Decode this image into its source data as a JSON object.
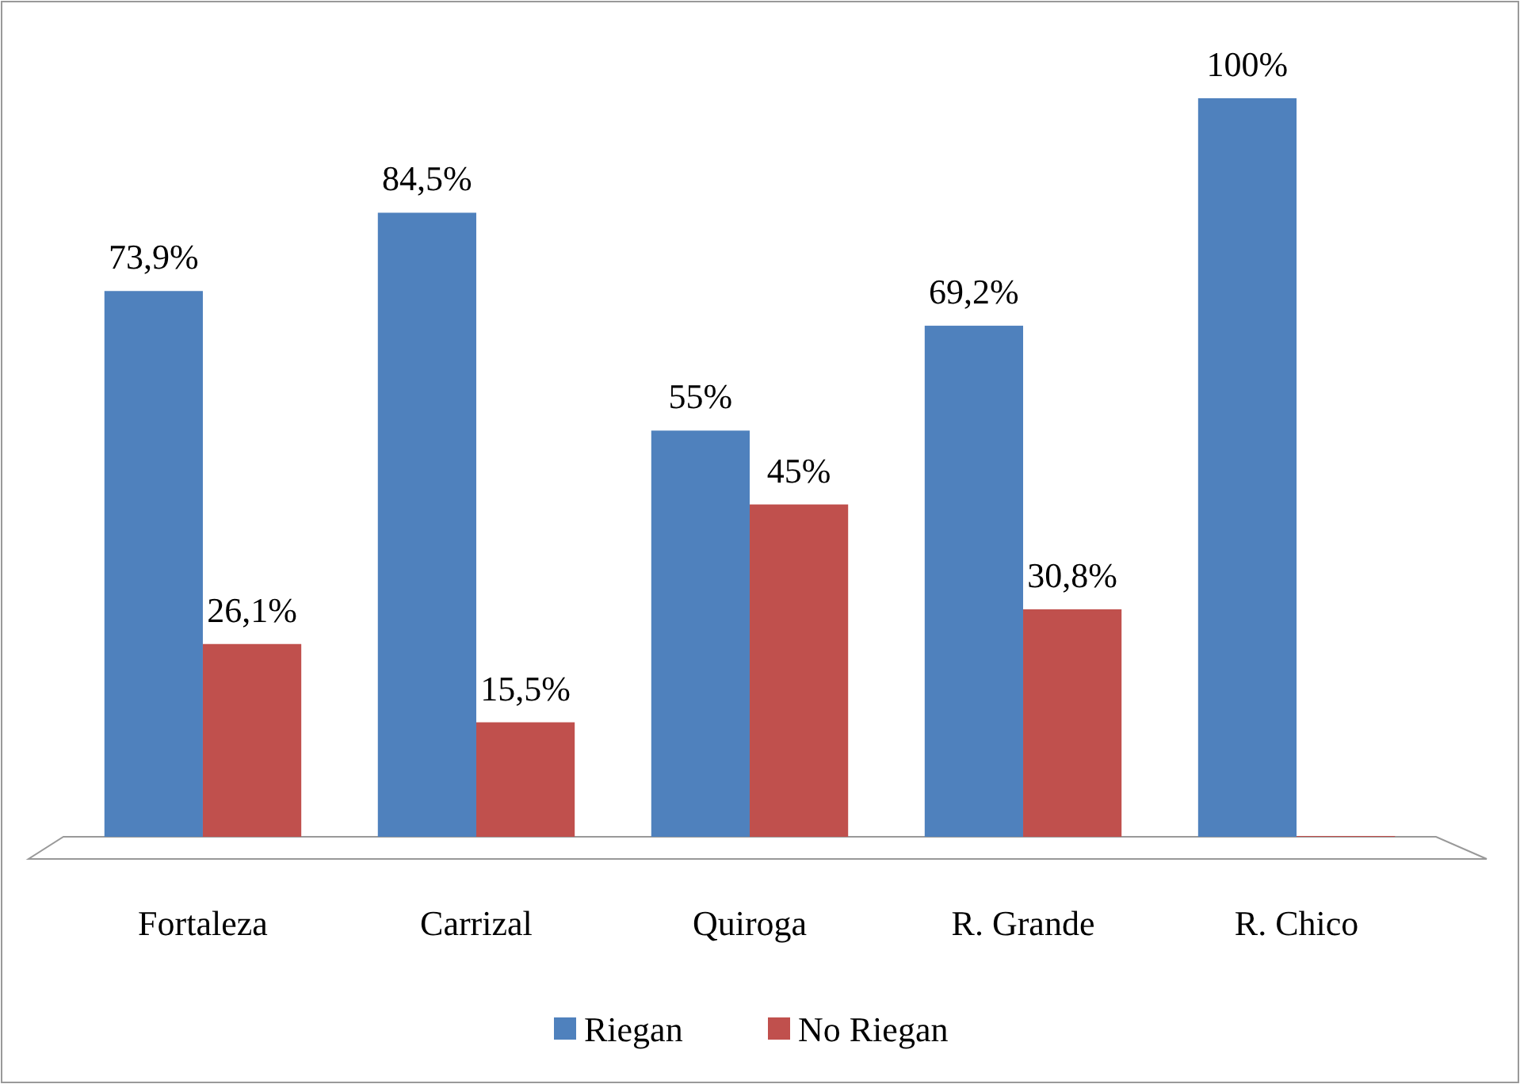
{
  "chart_data": {
    "type": "bar",
    "categories": [
      "Fortaleza",
      "Carrizal",
      "Quiroga",
      "R. Grande",
      "R. Chico"
    ],
    "series": [
      {
        "name": "Riegan",
        "color": "#4f81bd",
        "values": [
          73.9,
          84.5,
          55,
          69.2,
          100
        ],
        "value_labels": [
          "73,9%",
          "84,5%",
          "55%",
          "69,2%",
          "100%"
        ]
      },
      {
        "name": "No Riegan",
        "color": "#c0504d",
        "values": [
          26.1,
          15.5,
          45,
          30.8,
          0
        ],
        "value_labels": [
          "26,1%",
          "15,5%",
          "45%",
          "30,8%",
          null
        ]
      }
    ],
    "legend": "bottom",
    "grid": false
  }
}
